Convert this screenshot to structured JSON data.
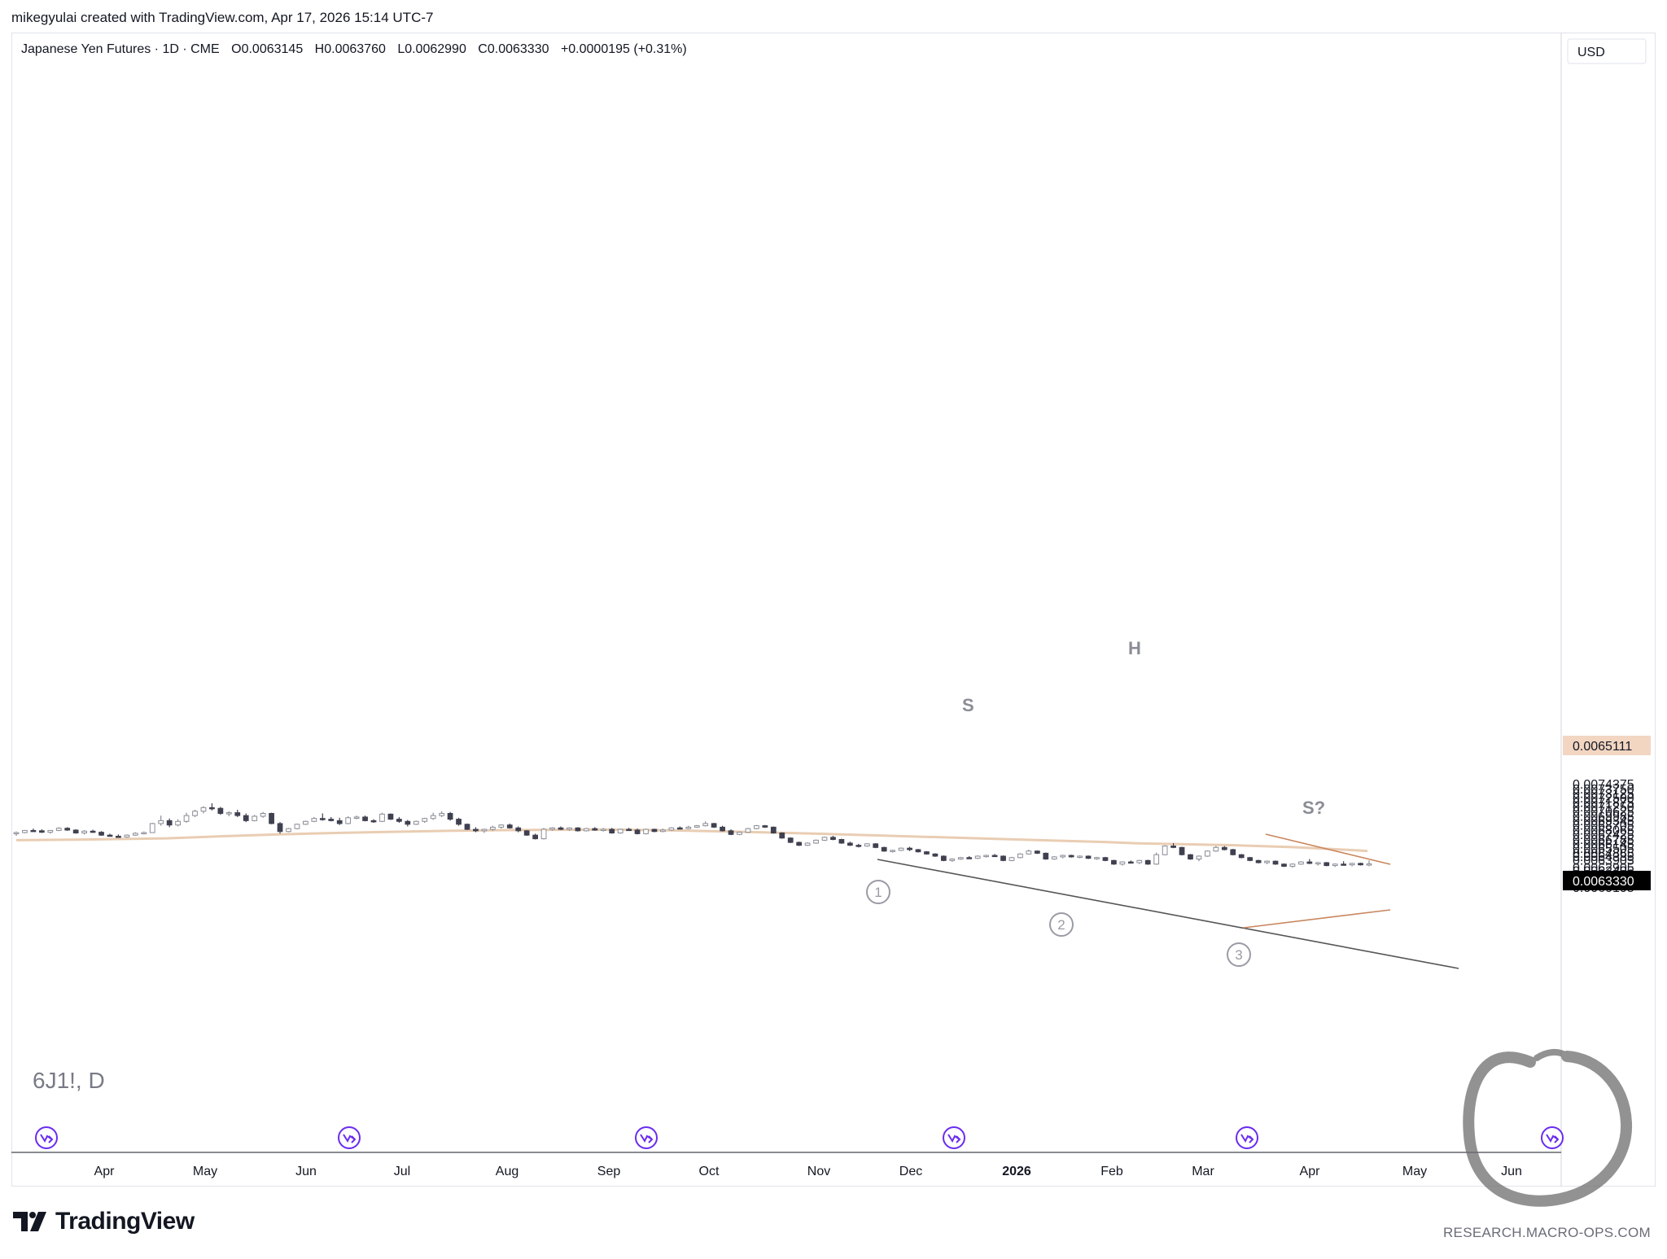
{
  "header": {
    "credit": "mikegyulai created with TradingView.com, Apr 17, 2026 15:14 UTC-7"
  },
  "legend": {
    "symbol": "Japanese Yen Futures · 1D · CME",
    "open": "O0.0063145",
    "high": "H0.0063760",
    "low": "L0.0062990",
    "close": "C0.0063330",
    "change": "+0.0000195 (+0.31%)"
  },
  "watermark": "6J1!, D",
  "footer": {
    "logo": "TradingView",
    "research": "RESEARCH.MACRO-OPS.COM"
  },
  "colors": {
    "bull_candle": "#ffffff",
    "bear_candle": "#3f4150",
    "candle_border": "#3f4150",
    "moving_average": "#e9cdb3",
    "trendline": "#555555",
    "triangle": "#c9855d",
    "event_icon": "#6a2cf0",
    "price_tag_last": "#000000",
    "price_tag_ma": "#f2d6c2"
  },
  "chart_data": {
    "type": "candlestick",
    "title": "Japanese Yen Futures · 1D · CME",
    "currency": "USD",
    "y_axis_ticks": [
      "0.0074375",
      "0.0073750",
      "0.0073125",
      "0.0072500",
      "0.0071875",
      "0.0071250",
      "0.0070625",
      "0.0069985",
      "0.0069345",
      "0.0068705",
      "0.0068065",
      "0.0067425",
      "0.0066785",
      "0.0066145",
      "0.0065505",
      "0.0064865",
      "0.0064385",
      "0.0063905",
      "0.0062905",
      "0.0062405",
      "0.0061925",
      "0.0061445",
      "0.0060965",
      "0.0060525",
      "0.0060105"
    ],
    "x_axis_ticks": [
      "Apr",
      "May",
      "Jun",
      "Jul",
      "Aug",
      "Sep",
      "Oct",
      "Nov",
      "Dec",
      "2026",
      "Feb",
      "Mar",
      "Apr",
      "May",
      "Jun"
    ],
    "ylim": [
      0.006,
      0.0075
    ],
    "last_price": "0.0063330",
    "ma_price": "0.0065111",
    "moving_average": [
      [
        0,
        0.00666
      ],
      [
        40,
        0.00667
      ],
      [
        80,
        0.006685
      ],
      [
        110,
        0.006715
      ],
      [
        140,
        0.00674
      ],
      [
        170,
        0.00676
      ],
      [
        200,
        0.006775
      ],
      [
        230,
        0.00679
      ],
      [
        260,
        0.0068
      ],
      [
        300,
        0.006805
      ],
      [
        320,
        0.006805
      ],
      [
        350,
        0.006795
      ],
      [
        380,
        0.00678
      ],
      [
        420,
        0.006755
      ],
      [
        460,
        0.006725
      ],
      [
        500,
        0.006695
      ],
      [
        540,
        0.006665
      ],
      [
        580,
        0.006635
      ],
      [
        600,
        0.006615
      ],
      [
        620,
        0.006605
      ],
      [
        650,
        0.00659
      ],
      [
        680,
        0.006565
      ],
      [
        700,
        0.00654
      ],
      [
        720,
        0.0065111
      ]
    ],
    "candles": [
      [
        0.006755,
        0.00678,
        0.00672,
        0.006765
      ],
      [
        0.006765,
        0.0068,
        0.006755,
        0.006795
      ],
      [
        0.006795,
        0.00682,
        0.00678,
        0.00679
      ],
      [
        0.00679,
        0.00681,
        0.00676,
        0.00677
      ],
      [
        0.00677,
        0.0068,
        0.00675,
        0.006795
      ],
      [
        0.006795,
        0.00684,
        0.006785,
        0.006825
      ],
      [
        0.006825,
        0.00684,
        0.00679,
        0.0068
      ],
      [
        0.0068,
        0.00681,
        0.00675,
        0.00676
      ],
      [
        0.00676,
        0.0068,
        0.00674,
        0.006785
      ],
      [
        0.006785,
        0.006805,
        0.00676,
        0.00677
      ],
      [
        0.00677,
        0.006785,
        0.00672,
        0.00673
      ],
      [
        0.00673,
        0.00675,
        0.00671,
        0.006715
      ],
      [
        0.006715,
        0.00674,
        0.006695,
        0.006705
      ],
      [
        0.006705,
        0.00674,
        0.006695,
        0.00673
      ],
      [
        0.00673,
        0.00677,
        0.00672,
        0.006755
      ],
      [
        0.006755,
        0.00678,
        0.00674,
        0.006765
      ],
      [
        0.006765,
        0.0069,
        0.00676,
        0.00689
      ],
      [
        0.00689,
        0.007,
        0.00686,
        0.00693
      ],
      [
        0.00693,
        0.00696,
        0.00684,
        0.00687
      ],
      [
        0.00687,
        0.00695,
        0.00685,
        0.00692
      ],
      [
        0.00692,
        0.00704,
        0.0069,
        0.007
      ],
      [
        0.007,
        0.00708,
        0.00698,
        0.00706
      ],
      [
        0.00706,
        0.00713,
        0.00703,
        0.00711
      ],
      [
        0.00711,
        0.00717,
        0.00707,
        0.0071
      ],
      [
        0.0071,
        0.00712,
        0.00701,
        0.00703
      ],
      [
        0.00703,
        0.00706,
        0.00699,
        0.00704
      ],
      [
        0.00704,
        0.00708,
        0.00698,
        0.007
      ],
      [
        0.007,
        0.00703,
        0.00691,
        0.00693
      ],
      [
        0.00693,
        0.00701,
        0.00692,
        0.00699
      ],
      [
        0.00699,
        0.00705,
        0.00697,
        0.00703
      ],
      [
        0.00703,
        0.00704,
        0.00688,
        0.00689
      ],
      [
        0.00689,
        0.00691,
        0.00675,
        0.00678
      ],
      [
        0.00678,
        0.00683,
        0.00677,
        0.00682
      ],
      [
        0.00682,
        0.00689,
        0.00681,
        0.00688
      ],
      [
        0.00688,
        0.00693,
        0.00687,
        0.00692
      ],
      [
        0.00692,
        0.00698,
        0.00691,
        0.00696
      ],
      [
        0.00696,
        0.00703,
        0.00693,
        0.00695
      ],
      [
        0.00695,
        0.00698,
        0.00692,
        0.00693
      ],
      [
        0.00693,
        0.00697,
        0.00687,
        0.00689
      ],
      [
        0.00689,
        0.00699,
        0.00688,
        0.00697
      ],
      [
        0.00697,
        0.007,
        0.00695,
        0.00698
      ],
      [
        0.00698,
        0.007,
        0.00692,
        0.00693
      ],
      [
        0.00693,
        0.00695,
        0.0069,
        0.00692
      ],
      [
        0.00692,
        0.00704,
        0.00691,
        0.00702
      ],
      [
        0.00702,
        0.00703,
        0.00694,
        0.00695
      ],
      [
        0.00695,
        0.00698,
        0.0069,
        0.00692
      ],
      [
        0.00692,
        0.00694,
        0.00685,
        0.00688
      ],
      [
        0.00688,
        0.00693,
        0.00687,
        0.00692
      ],
      [
        0.00692,
        0.00697,
        0.0069,
        0.00696
      ],
      [
        0.00696,
        0.00704,
        0.00694,
        0.007
      ],
      [
        0.007,
        0.00706,
        0.00698,
        0.00703
      ],
      [
        0.00703,
        0.00705,
        0.00693,
        0.00695
      ],
      [
        0.00695,
        0.00697,
        0.00686,
        0.00688
      ],
      [
        0.00688,
        0.00689,
        0.0068,
        0.00681
      ],
      [
        0.00681,
        0.00684,
        0.00677,
        0.00679
      ],
      [
        0.00679,
        0.00682,
        0.00676,
        0.00681
      ],
      [
        0.00681,
        0.00686,
        0.00679,
        0.00684
      ],
      [
        0.00684,
        0.00688,
        0.00682,
        0.00687
      ],
      [
        0.00687,
        0.00689,
        0.00682,
        0.00683
      ],
      [
        0.00683,
        0.00685,
        0.00677,
        0.00679
      ],
      [
        0.00679,
        0.0068,
        0.00672,
        0.00673
      ],
      [
        0.00673,
        0.00675,
        0.00667,
        0.00668
      ],
      [
        0.00668,
        0.00683,
        0.00667,
        0.00681
      ],
      [
        0.00681,
        0.00684,
        0.00679,
        0.00683
      ],
      [
        0.00683,
        0.00685,
        0.0068,
        0.00681
      ],
      [
        0.00681,
        0.00684,
        0.00679,
        0.00683
      ],
      [
        0.00683,
        0.00684,
        0.00678,
        0.00679
      ],
      [
        0.00679,
        0.00683,
        0.00678,
        0.00682
      ],
      [
        0.00682,
        0.00684,
        0.00679,
        0.0068
      ],
      [
        0.0068,
        0.00683,
        0.00678,
        0.00681
      ],
      [
        0.00681,
        0.00683,
        0.00675,
        0.00676
      ],
      [
        0.00676,
        0.00682,
        0.00675,
        0.00681
      ],
      [
        0.00681,
        0.00683,
        0.00679,
        0.0068
      ],
      [
        0.0068,
        0.00682,
        0.00674,
        0.00675
      ],
      [
        0.00675,
        0.00682,
        0.00674,
        0.00681
      ],
      [
        0.00681,
        0.00682,
        0.00677,
        0.00678
      ],
      [
        0.00678,
        0.00682,
        0.00677,
        0.0068
      ],
      [
        0.0068,
        0.00684,
        0.00679,
        0.00683
      ],
      [
        0.00683,
        0.00685,
        0.00681,
        0.00682
      ],
      [
        0.00682,
        0.00686,
        0.00681,
        0.00684
      ],
      [
        0.00684,
        0.00687,
        0.00683,
        0.00686
      ],
      [
        0.00686,
        0.00692,
        0.00685,
        0.00689
      ],
      [
        0.00689,
        0.0069,
        0.00683,
        0.00684
      ],
      [
        0.00684,
        0.00686,
        0.00678,
        0.00679
      ],
      [
        0.00679,
        0.00681,
        0.00673,
        0.00674
      ],
      [
        0.00674,
        0.00678,
        0.00673,
        0.00677
      ],
      [
        0.00677,
        0.00683,
        0.00676,
        0.00682
      ],
      [
        0.00682,
        0.00687,
        0.00681,
        0.00686
      ],
      [
        0.00686,
        0.00687,
        0.00683,
        0.00684
      ],
      [
        0.00684,
        0.00685,
        0.00675,
        0.00676
      ],
      [
        0.00676,
        0.00677,
        0.00668,
        0.00669
      ],
      [
        0.00669,
        0.0067,
        0.00662,
        0.00663
      ],
      [
        0.00663,
        0.00664,
        0.00658,
        0.00659
      ],
      [
        0.00659,
        0.00663,
        0.00658,
        0.00662
      ],
      [
        0.00662,
        0.00667,
        0.00661,
        0.00666
      ],
      [
        0.00666,
        0.00671,
        0.00665,
        0.0067
      ],
      [
        0.0067,
        0.00672,
        0.00666,
        0.00667
      ],
      [
        0.00667,
        0.00668,
        0.00661,
        0.00662
      ],
      [
        0.00662,
        0.00664,
        0.00658,
        0.00659
      ],
      [
        0.00659,
        0.00661,
        0.00656,
        0.00658
      ],
      [
        0.00658,
        0.00662,
        0.00657,
        0.00661
      ],
      [
        0.00661,
        0.00662,
        0.00655,
        0.00656
      ],
      [
        0.00656,
        0.00657,
        0.0065,
        0.00651
      ],
      [
        0.00651,
        0.00653,
        0.00649,
        0.00652
      ],
      [
        0.00652,
        0.00656,
        0.00651,
        0.00655
      ],
      [
        0.00655,
        0.00657,
        0.00651,
        0.00653
      ],
      [
        0.00653,
        0.00654,
        0.00649,
        0.0065
      ],
      [
        0.0065,
        0.00651,
        0.00646,
        0.00647
      ],
      [
        0.00647,
        0.00648,
        0.00643,
        0.00644
      ],
      [
        0.00644,
        0.00645,
        0.00637,
        0.00638
      ],
      [
        0.00638,
        0.00641,
        0.00636,
        0.0064
      ],
      [
        0.0064,
        0.00643,
        0.00639,
        0.00642
      ],
      [
        0.00642,
        0.00644,
        0.0064,
        0.00641
      ],
      [
        0.00641,
        0.00645,
        0.0064,
        0.00644
      ],
      [
        0.00644,
        0.00646,
        0.00642,
        0.00645
      ],
      [
        0.00645,
        0.00647,
        0.00643,
        0.00644
      ],
      [
        0.00644,
        0.00645,
        0.00637,
        0.00638
      ],
      [
        0.00638,
        0.00643,
        0.00637,
        0.00642
      ],
      [
        0.00642,
        0.00648,
        0.00641,
        0.00647
      ],
      [
        0.00647,
        0.00653,
        0.00646,
        0.00651
      ],
      [
        0.00651,
        0.00652,
        0.00647,
        0.00648
      ],
      [
        0.00648,
        0.00649,
        0.00639,
        0.0064
      ],
      [
        0.0064,
        0.00644,
        0.00639,
        0.00643
      ],
      [
        0.00643,
        0.00646,
        0.00641,
        0.00645
      ],
      [
        0.00645,
        0.00646,
        0.00642,
        0.00643
      ],
      [
        0.00643,
        0.00645,
        0.00641,
        0.00644
      ],
      [
        0.00644,
        0.00645,
        0.0064,
        0.00641
      ],
      [
        0.00641,
        0.00643,
        0.00639,
        0.00642
      ],
      [
        0.00642,
        0.00643,
        0.00637,
        0.00638
      ],
      [
        0.00638,
        0.00639,
        0.00632,
        0.00633
      ],
      [
        0.00633,
        0.00637,
        0.00631,
        0.00636
      ],
      [
        0.00636,
        0.00638,
        0.00634,
        0.00635
      ],
      [
        0.00635,
        0.00639,
        0.00633,
        0.00638
      ],
      [
        0.00638,
        0.00639,
        0.00632,
        0.00633
      ],
      [
        0.00633,
        0.00649,
        0.00632,
        0.00646
      ],
      [
        0.00646,
        0.00659,
        0.00645,
        0.00658
      ],
      [
        0.00658,
        0.00662,
        0.00655,
        0.00656
      ],
      [
        0.00656,
        0.00657,
        0.00645,
        0.00646
      ],
      [
        0.00646,
        0.00647,
        0.00639,
        0.0064
      ],
      [
        0.0064,
        0.00645,
        0.00637,
        0.00644
      ],
      [
        0.00644,
        0.00652,
        0.00643,
        0.00651
      ],
      [
        0.00651,
        0.00658,
        0.0065,
        0.00656
      ],
      [
        0.00656,
        0.00658,
        0.00652,
        0.00653
      ],
      [
        0.00653,
        0.00654,
        0.00645,
        0.00646
      ],
      [
        0.00646,
        0.00647,
        0.00641,
        0.00642
      ],
      [
        0.00642,
        0.00643,
        0.00637,
        0.00638
      ],
      [
        0.00638,
        0.00639,
        0.00634,
        0.00635
      ],
      [
        0.00635,
        0.00638,
        0.00633,
        0.00637
      ],
      [
        0.00637,
        0.00638,
        0.00632,
        0.00633
      ],
      [
        0.00633,
        0.00634,
        0.00629,
        0.0063
      ],
      [
        0.0063,
        0.00634,
        0.00628,
        0.00633
      ],
      [
        0.00633,
        0.00637,
        0.00632,
        0.00636
      ],
      [
        0.00636,
        0.0064,
        0.00633,
        0.00634
      ],
      [
        0.00634,
        0.00636,
        0.00631,
        0.00635
      ],
      [
        0.00635,
        0.00636,
        0.0063,
        0.00631
      ],
      [
        0.00631,
        0.00634,
        0.00629,
        0.00633
      ],
      [
        0.00633,
        0.00637,
        0.00631,
        0.00632
      ],
      [
        0.00632,
        0.00635,
        0.0063,
        0.00634
      ],
      [
        0.00634,
        0.00635,
        0.00631,
        0.00632
      ],
      [
        0.00632,
        0.00638,
        0.0063,
        0.006333
      ]
    ],
    "annotations": {
      "pattern_labels": [
        "S",
        "H",
        "S?"
      ],
      "wave_labels": [
        "1",
        "2",
        "3"
      ]
    }
  }
}
